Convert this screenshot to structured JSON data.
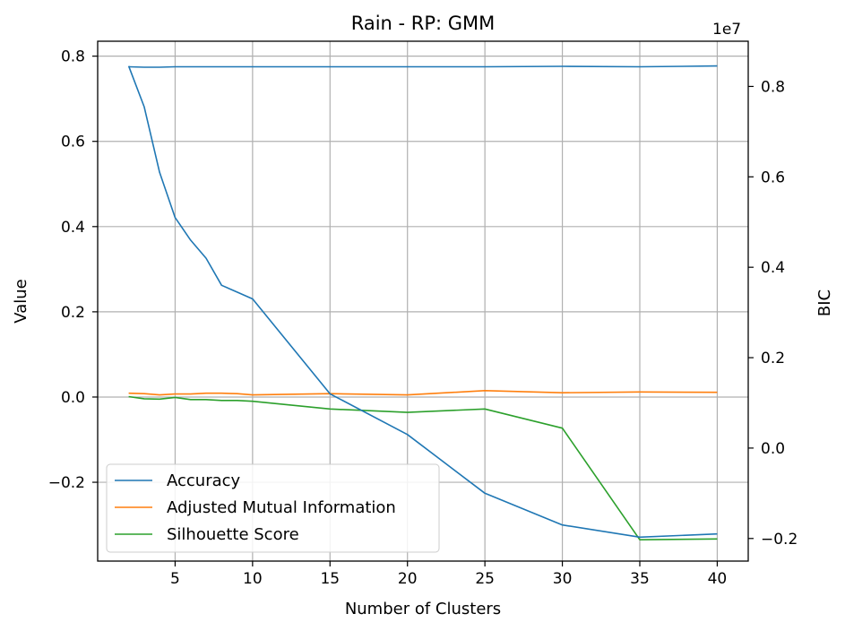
{
  "chart_data": {
    "type": "line",
    "title": "Rain - RP: GMM",
    "xlabel": "Number of Clusters",
    "ylabel_left": "Value",
    "ylabel_right": "BIC",
    "right_axis_offset_label": "1e7",
    "xlim": [
      0,
      42
    ],
    "ylim_left": [
      -0.385,
      0.835
    ],
    "ylim_right": [
      -0.25,
      0.9
    ],
    "x_ticks": [
      5,
      10,
      15,
      20,
      25,
      30,
      35,
      40
    ],
    "x_tick_labels": [
      "5",
      "10",
      "15",
      "20",
      "25",
      "30",
      "35",
      "40"
    ],
    "y_left_ticks": [
      0.8,
      0.6,
      0.4,
      0.2,
      0.0,
      -0.2
    ],
    "y_left_tick_labels": [
      "0.8",
      "0.6",
      "0.4",
      "0.2",
      "0.0",
      "−0.2"
    ],
    "y_right_ticks": [
      0.8,
      0.6,
      0.4,
      0.2,
      0.0,
      -0.2
    ],
    "y_right_tick_labels": [
      "0.8",
      "0.6",
      "0.4",
      "0.2",
      "0.0",
      "−0.2"
    ],
    "grid": true,
    "legend_position": "lower-left",
    "series": [
      {
        "name": "Accuracy",
        "axis": "left",
        "color": "#1f77b4",
        "x": [
          2,
          3,
          4,
          5,
          6,
          7,
          8,
          9,
          10,
          15,
          20,
          25,
          30,
          35,
          40
        ],
        "y": [
          0.775,
          0.774,
          0.774,
          0.775,
          0.775,
          0.775,
          0.775,
          0.775,
          0.775,
          0.775,
          0.775,
          0.775,
          0.776,
          0.775,
          0.777
        ]
      },
      {
        "name": "Adjusted Mutual Information",
        "axis": "left",
        "color": "#ff7f0e",
        "x": [
          2,
          3,
          4,
          5,
          6,
          7,
          8,
          9,
          10,
          15,
          20,
          25,
          30,
          35,
          40
        ],
        "y": [
          0.009,
          0.008,
          0.005,
          0.007,
          0.007,
          0.009,
          0.009,
          0.008,
          0.005,
          0.008,
          0.005,
          0.015,
          0.01,
          0.012,
          0.011
        ]
      },
      {
        "name": "Silhouette Score",
        "axis": "left",
        "color": "#2ca02c",
        "x": [
          2,
          3,
          4,
          5,
          6,
          7,
          8,
          9,
          10,
          15,
          20,
          25,
          30,
          35,
          40
        ],
        "y": [
          0.001,
          -0.004,
          -0.005,
          -0.001,
          -0.006,
          -0.006,
          -0.008,
          -0.008,
          -0.01,
          -0.028,
          -0.036,
          -0.028,
          -0.073,
          -0.335,
          -0.333
        ]
      },
      {
        "name": "BIC",
        "axis": "right",
        "color": "#1f77b4",
        "x": [
          2,
          3,
          4,
          5,
          6,
          7,
          8,
          9,
          10,
          15,
          20,
          25,
          30,
          35,
          40
        ],
        "y": [
          0.845,
          0.755,
          0.61,
          0.51,
          0.46,
          0.42,
          0.36,
          0.345,
          0.33,
          0.12,
          0.03,
          -0.1,
          -0.17,
          -0.197,
          -0.19
        ]
      }
    ]
  }
}
